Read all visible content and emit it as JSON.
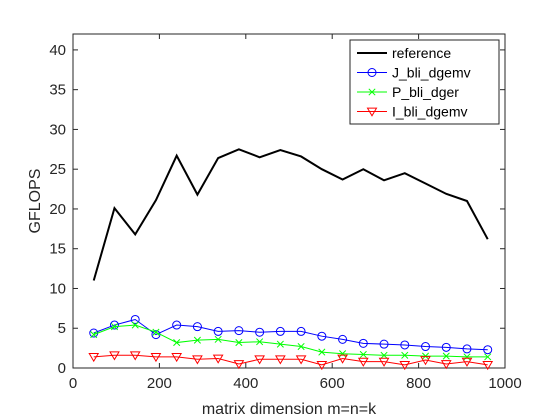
{
  "chart_data": {
    "type": "line",
    "title": "",
    "xlabel": "matrix dimension m=n=k",
    "ylabel": "GFLOPS",
    "xlim": [
      0,
      1000
    ],
    "ylim": [
      0,
      42
    ],
    "xticks": [
      0,
      200,
      400,
      600,
      800,
      1000
    ],
    "yticks": [
      0,
      5,
      10,
      15,
      20,
      25,
      30,
      35,
      40
    ],
    "grid": false,
    "legend_position": "top-right",
    "x": [
      48,
      96,
      144,
      192,
      240,
      288,
      336,
      384,
      432,
      480,
      528,
      576,
      624,
      672,
      720,
      768,
      816,
      864,
      912,
      960
    ],
    "series": [
      {
        "name": "reference",
        "color": "#000000",
        "marker": "none",
        "values": [
          11.0,
          20.1,
          16.8,
          21.1,
          26.7,
          21.8,
          26.4,
          27.5,
          26.5,
          27.4,
          26.6,
          25.0,
          23.7,
          25.0,
          23.6,
          24.5,
          23.2,
          21.9,
          21.0,
          16.2
        ]
      },
      {
        "name": "J_bli_dgemv",
        "color": "#0000ff",
        "marker": "circle",
        "values": [
          4.4,
          5.4,
          6.1,
          4.2,
          5.4,
          5.2,
          4.6,
          4.7,
          4.5,
          4.6,
          4.6,
          4.0,
          3.6,
          3.1,
          3.0,
          2.9,
          2.7,
          2.6,
          2.4,
          2.3
        ]
      },
      {
        "name": "P_bli_dger",
        "color": "#00ff00",
        "marker": "x",
        "values": [
          4.2,
          5.2,
          5.4,
          4.5,
          3.2,
          3.5,
          3.6,
          3.2,
          3.3,
          3.0,
          2.7,
          2.0,
          1.8,
          1.7,
          1.6,
          1.6,
          1.5,
          1.5,
          1.4,
          1.4
        ]
      },
      {
        "name": "I_bli_dgemv",
        "color": "#ff0000",
        "marker": "triangle-down",
        "values": [
          1.4,
          1.6,
          1.6,
          1.4,
          1.4,
          1.1,
          1.2,
          0.5,
          1.1,
          1.1,
          1.1,
          0.4,
          1.2,
          0.8,
          0.8,
          0.4,
          1.0,
          0.5,
          0.8,
          0.4
        ]
      }
    ]
  }
}
